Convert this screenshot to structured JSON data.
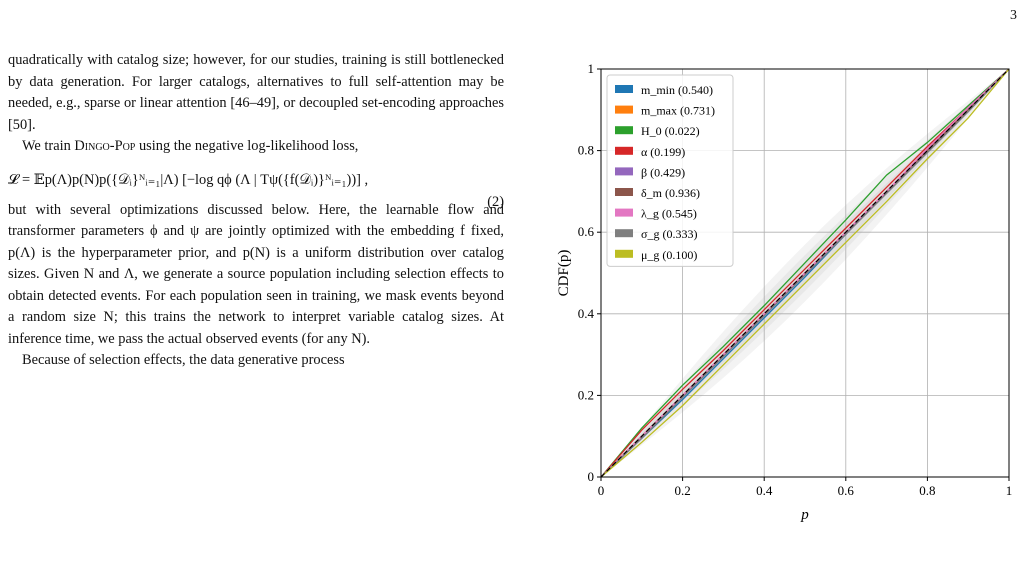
{
  "page_number": "3",
  "text": {
    "p1": "quadratically with catalog size; however, for our studies, training is still bottlenecked by data generation. For larger catalogs, alternatives to full self-attention may be needed, e.g., sparse or linear attention [46–49], or decoupled set-encoding approaches [50].",
    "p2_intro": "We train ",
    "p2_name": "Dingo-Pop",
    "p2_rest": " using the negative log-likelihood loss,",
    "equation": "𝓛 = 𝔼p(Λ)p(N)p({𝒟ᵢ}ᴺᵢ₌₁|Λ) [−log qϕ (Λ | Tψ({f(𝒟ᵢ)}ᴺᵢ₌₁))] ,",
    "equation_number": "(2)",
    "p3": "but with several optimizations discussed below. Here, the learnable flow and transformer parameters ϕ and ψ are jointly optimized with the embedding f fixed, p(Λ) is the hyperparameter prior, and p(N) is a uniform distribution over catalog sizes. Given N and Λ, we generate a source population including selection effects to obtain detected events. For each population seen in training, we mask events beyond a random size N; this trains the network to interpret variable catalog sizes. At inference time, we pass the actual observed events (for any N).",
    "p4": "Because of selection effects, the data generative process"
  },
  "chart_data": {
    "type": "line",
    "xlabel": "p",
    "ylabel": "CDF(p)",
    "xlim": [
      0,
      1
    ],
    "ylim": [
      0,
      1
    ],
    "x_ticks": [
      "0",
      "0.2",
      "0.4",
      "0.6",
      "0.8",
      "1"
    ],
    "y_ticks": [
      "0",
      "0.2",
      "0.4",
      "0.6",
      "0.8",
      "1"
    ],
    "grid": true,
    "legend_position": "top-left",
    "diagonal_reference": true,
    "series": [
      {
        "name": "m_min (0.540)",
        "color": "#1f77b4",
        "values": [
          [
            0,
            0
          ],
          [
            0.1,
            0.095
          ],
          [
            0.2,
            0.19
          ],
          [
            0.3,
            0.29
          ],
          [
            0.4,
            0.39
          ],
          [
            0.5,
            0.49
          ],
          [
            0.6,
            0.595
          ],
          [
            0.7,
            0.7
          ],
          [
            0.8,
            0.8
          ],
          [
            0.9,
            0.9
          ],
          [
            1,
            1
          ]
        ]
      },
      {
        "name": "m_max (0.731)",
        "color": "#ff7f0e",
        "values": [
          [
            0,
            0
          ],
          [
            0.1,
            0.1
          ],
          [
            0.2,
            0.2
          ],
          [
            0.3,
            0.3
          ],
          [
            0.4,
            0.4
          ],
          [
            0.5,
            0.5
          ],
          [
            0.6,
            0.6
          ],
          [
            0.7,
            0.7
          ],
          [
            0.8,
            0.8
          ],
          [
            0.9,
            0.9
          ],
          [
            1,
            1
          ]
        ]
      },
      {
        "name": "H_0 (0.022)",
        "color": "#2ca02c",
        "values": [
          [
            0,
            0
          ],
          [
            0.1,
            0.12
          ],
          [
            0.2,
            0.225
          ],
          [
            0.3,
            0.32
          ],
          [
            0.4,
            0.42
          ],
          [
            0.5,
            0.525
          ],
          [
            0.6,
            0.63
          ],
          [
            0.7,
            0.74
          ],
          [
            0.8,
            0.82
          ],
          [
            0.9,
            0.91
          ],
          [
            1,
            1
          ]
        ]
      },
      {
        "name": "α (0.199)",
        "color": "#d62728",
        "values": [
          [
            0,
            0
          ],
          [
            0.1,
            0.115
          ],
          [
            0.2,
            0.215
          ],
          [
            0.3,
            0.31
          ],
          [
            0.4,
            0.41
          ],
          [
            0.5,
            0.51
          ],
          [
            0.6,
            0.61
          ],
          [
            0.7,
            0.71
          ],
          [
            0.8,
            0.81
          ],
          [
            0.9,
            0.905
          ],
          [
            1,
            1
          ]
        ]
      },
      {
        "name": "β (0.429)",
        "color": "#9467bd",
        "values": [
          [
            0,
            0
          ],
          [
            0.1,
            0.1
          ],
          [
            0.2,
            0.2
          ],
          [
            0.3,
            0.3
          ],
          [
            0.4,
            0.4
          ],
          [
            0.5,
            0.5
          ],
          [
            0.6,
            0.6
          ],
          [
            0.7,
            0.7
          ],
          [
            0.8,
            0.8
          ],
          [
            0.9,
            0.9
          ],
          [
            1,
            1
          ]
        ]
      },
      {
        "name": "δ_m (0.936)",
        "color": "#8c564b",
        "values": [
          [
            0,
            0
          ],
          [
            0.1,
            0.1
          ],
          [
            0.2,
            0.2
          ],
          [
            0.3,
            0.3
          ],
          [
            0.4,
            0.4
          ],
          [
            0.5,
            0.5
          ],
          [
            0.6,
            0.6
          ],
          [
            0.7,
            0.7
          ],
          [
            0.8,
            0.8
          ],
          [
            0.9,
            0.9
          ],
          [
            1,
            1
          ]
        ]
      },
      {
        "name": "λ_g (0.545)",
        "color": "#e377c2",
        "values": [
          [
            0,
            0
          ],
          [
            0.1,
            0.1
          ],
          [
            0.2,
            0.2
          ],
          [
            0.3,
            0.3
          ],
          [
            0.4,
            0.4
          ],
          [
            0.5,
            0.5
          ],
          [
            0.6,
            0.6
          ],
          [
            0.7,
            0.7
          ],
          [
            0.8,
            0.805
          ],
          [
            0.9,
            0.905
          ],
          [
            1,
            1
          ]
        ]
      },
      {
        "name": "σ_g (0.333)",
        "color": "#7f7f7f",
        "values": [
          [
            0,
            0
          ],
          [
            0.1,
            0.095
          ],
          [
            0.2,
            0.195
          ],
          [
            0.3,
            0.295
          ],
          [
            0.4,
            0.395
          ],
          [
            0.5,
            0.495
          ],
          [
            0.6,
            0.595
          ],
          [
            0.7,
            0.695
          ],
          [
            0.8,
            0.795
          ],
          [
            0.9,
            0.895
          ],
          [
            1,
            1
          ]
        ]
      },
      {
        "name": "μ_g (0.100)",
        "color": "#bcbd22",
        "values": [
          [
            0,
            0
          ],
          [
            0.1,
            0.085
          ],
          [
            0.2,
            0.175
          ],
          [
            0.3,
            0.275
          ],
          [
            0.4,
            0.375
          ],
          [
            0.5,
            0.475
          ],
          [
            0.6,
            0.575
          ],
          [
            0.7,
            0.675
          ],
          [
            0.8,
            0.78
          ],
          [
            0.9,
            0.88
          ],
          [
            1,
            1
          ]
        ]
      }
    ]
  }
}
